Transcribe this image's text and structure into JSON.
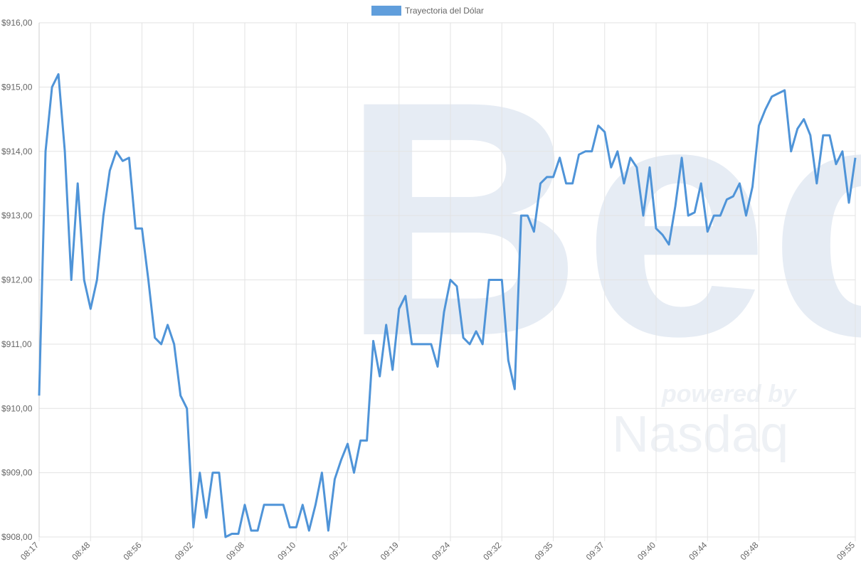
{
  "chart_data": {
    "type": "line",
    "legend": "top",
    "series": [
      {
        "name": "Trayectoria del Dólar",
        "color": "#4f94d8",
        "values": [
          910.2,
          914.0,
          915.0,
          915.2,
          914.0,
          912.0,
          913.5,
          912.0,
          911.55,
          912.0,
          913.0,
          913.7,
          914.0,
          913.85,
          913.9,
          912.8,
          912.8,
          912.0,
          911.1,
          911.0,
          911.3,
          911.0,
          910.2,
          910.0,
          908.15,
          909.0,
          908.3,
          909.0,
          909.0,
          908.0,
          908.05,
          908.05,
          908.5,
          908.1,
          908.1,
          908.5,
          908.5,
          908.5,
          908.5,
          908.15,
          908.15,
          908.5,
          908.1,
          908.5,
          909.0,
          908.1,
          908.9,
          909.2,
          909.45,
          909.0,
          909.5,
          909.5,
          911.05,
          910.5,
          911.3,
          910.6,
          911.55,
          911.75,
          911.0,
          911.0,
          911.0,
          911.0,
          910.65,
          911.5,
          912.0,
          911.9,
          911.1,
          911.0,
          911.2,
          911.0,
          912.0,
          912.0,
          912.0,
          910.75,
          910.3,
          913.0,
          913.0,
          912.75,
          913.5,
          913.6,
          913.6,
          913.9,
          913.5,
          913.5,
          913.95,
          914.0,
          914.0,
          914.4,
          914.3,
          913.75,
          914.0,
          913.5,
          913.9,
          913.75,
          913.0,
          913.75,
          912.8,
          912.7,
          912.55,
          913.15,
          913.9,
          913.0,
          913.05,
          913.5,
          912.75,
          913.0,
          913.0,
          913.25,
          913.3,
          913.5,
          913.0,
          913.45,
          914.4,
          914.65,
          914.85,
          914.9,
          914.95,
          914.0,
          914.35,
          914.5,
          914.25,
          913.5,
          914.25,
          914.25,
          913.8,
          914.0,
          913.2,
          913.9
        ]
      }
    ],
    "categories": [
      "08:17",
      null,
      null,
      null,
      null,
      null,
      null,
      null,
      "08:48",
      null,
      null,
      null,
      null,
      null,
      null,
      null,
      "08:56",
      null,
      null,
      null,
      null,
      null,
      null,
      null,
      "09:02",
      null,
      null,
      null,
      null,
      null,
      null,
      null,
      "09:08",
      null,
      null,
      null,
      null,
      null,
      null,
      null,
      "09:10",
      null,
      null,
      null,
      null,
      null,
      null,
      null,
      "09:12",
      null,
      null,
      null,
      null,
      null,
      null,
      null,
      "09:19",
      null,
      null,
      null,
      null,
      null,
      null,
      null,
      "09:24",
      null,
      null,
      null,
      null,
      null,
      null,
      null,
      "09:32",
      null,
      null,
      null,
      null,
      null,
      null,
      null,
      "09:35",
      null,
      null,
      null,
      null,
      null,
      null,
      null,
      "09:37",
      null,
      null,
      null,
      null,
      null,
      null,
      null,
      "09:40",
      null,
      null,
      null,
      null,
      null,
      null,
      null,
      "09:44",
      null,
      null,
      null,
      null,
      null,
      null,
      null,
      "09:48",
      null,
      null,
      null,
      null,
      null,
      null,
      null,
      null,
      null,
      null,
      null,
      null,
      null,
      null,
      "09:55"
    ],
    "ylim": [
      908,
      916
    ],
    "yticks": [
      {
        "value": 908,
        "label": "$908,00"
      },
      {
        "value": 909,
        "label": "$909,00"
      },
      {
        "value": 910,
        "label": "$910,00"
      },
      {
        "value": 911,
        "label": "$911,00"
      },
      {
        "value": 912,
        "label": "$912,00"
      },
      {
        "value": 913,
        "label": "$913,00"
      },
      {
        "value": 914,
        "label": "$914,00"
      },
      {
        "value": 915,
        "label": "$915,00"
      },
      {
        "value": 916,
        "label": "$916,00"
      }
    ],
    "grid": true,
    "watermark": {
      "logo": "Bec",
      "tagline": "powered by",
      "brand": "Nasdaq"
    }
  }
}
